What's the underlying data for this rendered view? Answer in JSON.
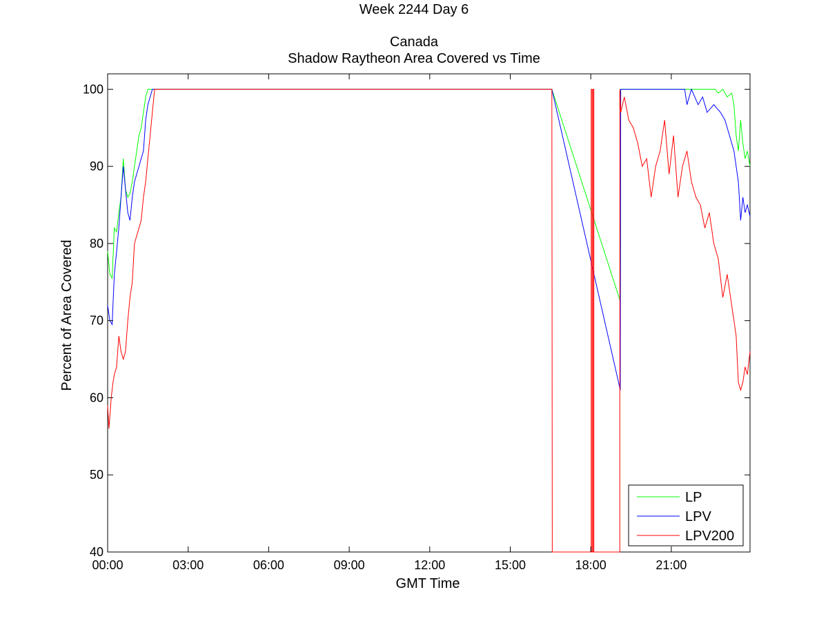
{
  "chart_data": {
    "type": "line",
    "title_lines": [
      "Week 2244 Day 6",
      "",
      "Canada",
      "Shadow Raytheon Area Covered vs Time"
    ],
    "xlabel": "GMT Time",
    "ylabel": "Percent of Area Covered",
    "xlim": [
      "00:00",
      "23:56"
    ],
    "ylim": [
      40,
      102
    ],
    "x_ticks": [
      "00:00",
      "03:00",
      "06:00",
      "09:00",
      "12:00",
      "15:00",
      "18:00",
      "21:00"
    ],
    "y_ticks": [
      40,
      50,
      60,
      70,
      80,
      90,
      100
    ],
    "grid": false,
    "legend_position": "bottom-right",
    "colors": {
      "LP": "#00ff00",
      "LPV": "#0000ff",
      "LPV200": "#ff0000"
    },
    "series": [
      {
        "name": "LP",
        "color": "#00ff00",
        "points": [
          [
            "00:00",
            79
          ],
          [
            "00:05",
            76
          ],
          [
            "00:10",
            75.5
          ],
          [
            "00:15",
            82
          ],
          [
            "00:20",
            81.5
          ],
          [
            "00:25",
            84
          ],
          [
            "00:30",
            86
          ],
          [
            "00:35",
            91
          ],
          [
            "00:40",
            87
          ],
          [
            "00:45",
            86
          ],
          [
            "00:50",
            86.5
          ],
          [
            "00:55",
            88
          ],
          [
            "01:00",
            90
          ],
          [
            "01:05",
            92
          ],
          [
            "01:10",
            94
          ],
          [
            "01:15",
            95
          ],
          [
            "01:20",
            97
          ],
          [
            "01:25",
            99
          ],
          [
            "01:30",
            100
          ],
          [
            "16:33",
            100
          ],
          [
            "19:06",
            72.5
          ],
          [
            "19:07",
            100
          ],
          [
            "22:38",
            100
          ],
          [
            "22:45",
            99.5
          ],
          [
            "22:55",
            100
          ],
          [
            "23:05",
            99
          ],
          [
            "23:15",
            99.5
          ],
          [
            "23:20",
            98
          ],
          [
            "23:25",
            94
          ],
          [
            "23:30",
            92
          ],
          [
            "23:35",
            96
          ],
          [
            "23:40",
            93
          ],
          [
            "23:45",
            91
          ],
          [
            "23:50",
            92
          ],
          [
            "23:56",
            90
          ]
        ]
      },
      {
        "name": "LPV",
        "color": "#0000ff",
        "points": [
          [
            "00:00",
            72
          ],
          [
            "00:05",
            70
          ],
          [
            "00:10",
            69.5
          ],
          [
            "00:15",
            76
          ],
          [
            "00:20",
            79
          ],
          [
            "00:25",
            82
          ],
          [
            "00:30",
            86
          ],
          [
            "00:35",
            90
          ],
          [
            "00:40",
            87
          ],
          [
            "00:45",
            84
          ],
          [
            "00:50",
            83
          ],
          [
            "00:55",
            86
          ],
          [
            "01:00",
            88
          ],
          [
            "01:05",
            89
          ],
          [
            "01:10",
            90
          ],
          [
            "01:15",
            91
          ],
          [
            "01:20",
            92
          ],
          [
            "01:25",
            96
          ],
          [
            "01:30",
            98
          ],
          [
            "01:35",
            99
          ],
          [
            "01:40",
            100
          ],
          [
            "16:33",
            100
          ],
          [
            "19:06",
            61
          ],
          [
            "19:07",
            100
          ],
          [
            "21:30",
            100
          ],
          [
            "21:35",
            98
          ],
          [
            "21:45",
            100
          ],
          [
            "22:00",
            98
          ],
          [
            "22:10",
            99
          ],
          [
            "22:20",
            97
          ],
          [
            "22:35",
            98
          ],
          [
            "22:50",
            97
          ],
          [
            "23:00",
            96
          ],
          [
            "23:10",
            94
          ],
          [
            "23:20",
            92
          ],
          [
            "23:30",
            88
          ],
          [
            "23:35",
            83
          ],
          [
            "23:40",
            86
          ],
          [
            "23:45",
            84
          ],
          [
            "23:50",
            85
          ],
          [
            "23:56",
            83.5
          ]
        ]
      },
      {
        "name": "LPV200",
        "color": "#ff0000",
        "points": [
          [
            "00:00",
            59
          ],
          [
            "00:03",
            56
          ],
          [
            "00:08",
            60
          ],
          [
            "00:12",
            62
          ],
          [
            "00:15",
            63
          ],
          [
            "00:20",
            64
          ],
          [
            "00:25",
            68
          ],
          [
            "00:30",
            66
          ],
          [
            "00:35",
            65
          ],
          [
            "00:40",
            66
          ],
          [
            "00:45",
            70
          ],
          [
            "00:50",
            73
          ],
          [
            "00:55",
            75
          ],
          [
            "01:00",
            80
          ],
          [
            "01:05",
            81
          ],
          [
            "01:10",
            82
          ],
          [
            "01:15",
            83
          ],
          [
            "01:20",
            86
          ],
          [
            "01:25",
            88
          ],
          [
            "01:30",
            91
          ],
          [
            "01:35",
            94
          ],
          [
            "01:40",
            97
          ],
          [
            "01:45",
            100
          ],
          [
            "16:33",
            100
          ],
          [
            "16:34",
            40
          ],
          [
            "18:01",
            40
          ],
          [
            "18:01",
            100
          ],
          [
            "18:03",
            100
          ],
          [
            "18:03",
            40
          ],
          [
            "18:05",
            40
          ],
          [
            "18:05",
            100
          ],
          [
            "18:07",
            100
          ],
          [
            "18:07",
            40
          ],
          [
            "19:05",
            40
          ],
          [
            "19:05",
            100
          ],
          [
            "19:07",
            97
          ],
          [
            "19:15",
            99
          ],
          [
            "19:25",
            96
          ],
          [
            "19:35",
            95
          ],
          [
            "19:45",
            93
          ],
          [
            "19:55",
            90
          ],
          [
            "20:05",
            91
          ],
          [
            "20:15",
            86
          ],
          [
            "20:25",
            90
          ],
          [
            "20:35",
            92
          ],
          [
            "20:45",
            96
          ],
          [
            "20:55",
            89
          ],
          [
            "21:05",
            94
          ],
          [
            "21:15",
            86
          ],
          [
            "21:25",
            90
          ],
          [
            "21:35",
            92
          ],
          [
            "21:45",
            88
          ],
          [
            "21:55",
            86
          ],
          [
            "22:05",
            85
          ],
          [
            "22:15",
            82
          ],
          [
            "22:25",
            84
          ],
          [
            "22:35",
            80
          ],
          [
            "22:45",
            78
          ],
          [
            "22:55",
            73
          ],
          [
            "23:05",
            76
          ],
          [
            "23:15",
            72
          ],
          [
            "23:20",
            70
          ],
          [
            "23:25",
            68
          ],
          [
            "23:30",
            62
          ],
          [
            "23:35",
            61
          ],
          [
            "23:40",
            62
          ],
          [
            "23:45",
            64
          ],
          [
            "23:50",
            63
          ],
          [
            "23:56",
            66
          ]
        ]
      }
    ]
  }
}
